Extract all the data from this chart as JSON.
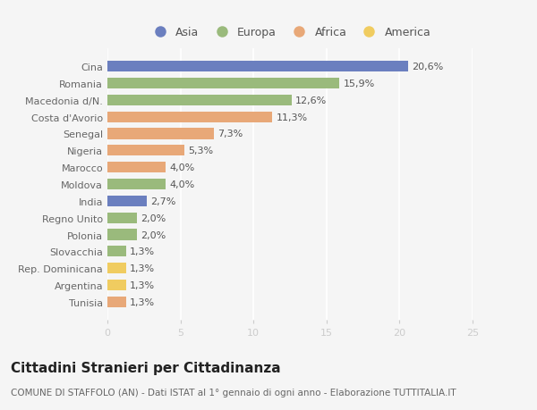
{
  "categories": [
    "Cina",
    "Romania",
    "Macedonia d/N.",
    "Costa d'Avorio",
    "Senegal",
    "Nigeria",
    "Marocco",
    "Moldova",
    "India",
    "Regno Unito",
    "Polonia",
    "Slovacchia",
    "Rep. Dominicana",
    "Argentina",
    "Tunisia"
  ],
  "values": [
    20.6,
    15.9,
    12.6,
    11.3,
    7.3,
    5.3,
    4.0,
    4.0,
    2.7,
    2.0,
    2.0,
    1.3,
    1.3,
    1.3,
    1.3
  ],
  "labels": [
    "20,6%",
    "15,9%",
    "12,6%",
    "11,3%",
    "7,3%",
    "5,3%",
    "4,0%",
    "4,0%",
    "2,7%",
    "2,0%",
    "2,0%",
    "1,3%",
    "1,3%",
    "1,3%",
    "1,3%"
  ],
  "continents": [
    "Asia",
    "Europa",
    "Europa",
    "Africa",
    "Africa",
    "Africa",
    "Africa",
    "Europa",
    "Asia",
    "Europa",
    "Europa",
    "Europa",
    "America",
    "America",
    "Africa"
  ],
  "continent_colors": {
    "Asia": "#6b7fbf",
    "Europa": "#9aba7c",
    "Africa": "#e8a878",
    "America": "#f0cc60"
  },
  "legend_order": [
    "Asia",
    "Europa",
    "Africa",
    "America"
  ],
  "xlim": [
    0,
    25
  ],
  "xticks": [
    0,
    5,
    10,
    15,
    20,
    25
  ],
  "title": "Cittadini Stranieri per Cittadinanza",
  "subtitle": "COMUNE DI STAFFOLO (AN) - Dati ISTAT al 1° gennaio di ogni anno - Elaborazione TUTTITALIA.IT",
  "background_color": "#f5f5f5",
  "bar_height": 0.65,
  "label_fontsize": 8,
  "tick_label_fontsize": 8,
  "title_fontsize": 11,
  "subtitle_fontsize": 7.5
}
